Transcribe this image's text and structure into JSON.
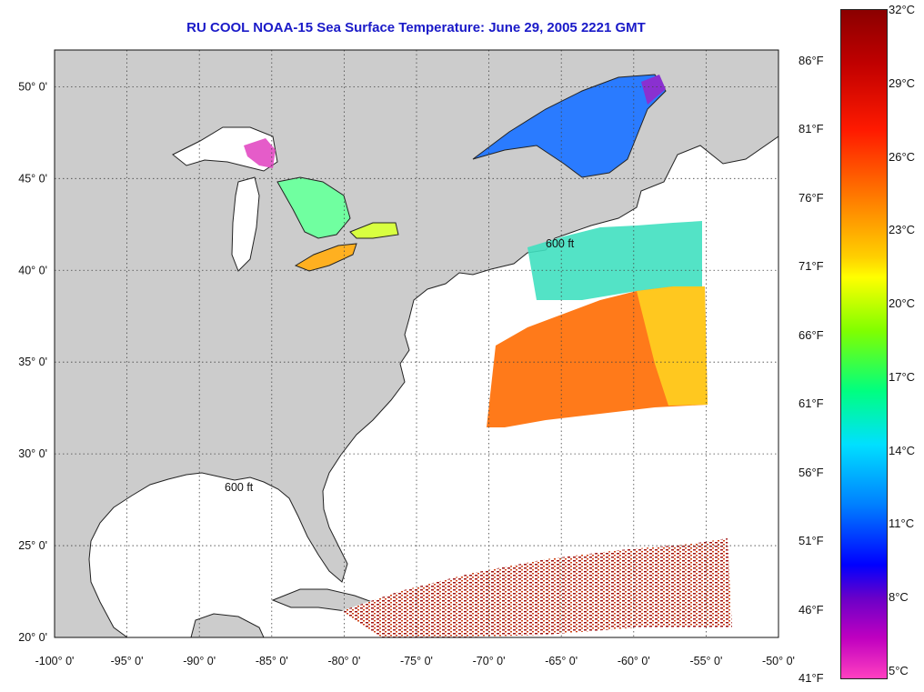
{
  "title": "RU COOL  NOAA-15  Sea Surface Temperature:  June 29, 2005 2221 GMT",
  "map": {
    "lon_range": [
      -100,
      -50
    ],
    "lat_range": [
      20,
      52
    ],
    "lon_labels": [
      "-100° 0'",
      "-95° 0'",
      "-90° 0'",
      "-85° 0'",
      "-80° 0'",
      "-75° 0'",
      "-70° 0'",
      "-65° 0'",
      "-60° 0'",
      "-55° 0'",
      "-50° 0'"
    ],
    "lat_labels": [
      "20° 0'",
      "25° 0'",
      "30° 0'",
      "35° 0'",
      "40° 0'",
      "45° 0'",
      "50° 0'"
    ],
    "contour_label": "600 ft",
    "land_color": "#cccccc",
    "ocean_color": "#ffffff",
    "grid": "dotted"
  },
  "colorbar": {
    "celsius": [
      "32°C",
      "29°C",
      "26°C",
      "23°C",
      "20°C",
      "17°C",
      "14°C",
      "11°C",
      "8°C",
      "5°C"
    ],
    "fahrenheit": [
      "86°F",
      "81°F",
      "76°F",
      "71°F",
      "66°F",
      "61°F",
      "56°F",
      "51°F",
      "46°F",
      "41°F"
    ],
    "range_c": [
      5,
      32
    ],
    "colors": [
      "#8b0000",
      "#ff1a00",
      "#ff7a00",
      "#ffff00",
      "#80ff00",
      "#00e0ff",
      "#0000ff",
      "#6a00c8",
      "#ff40c0"
    ]
  }
}
